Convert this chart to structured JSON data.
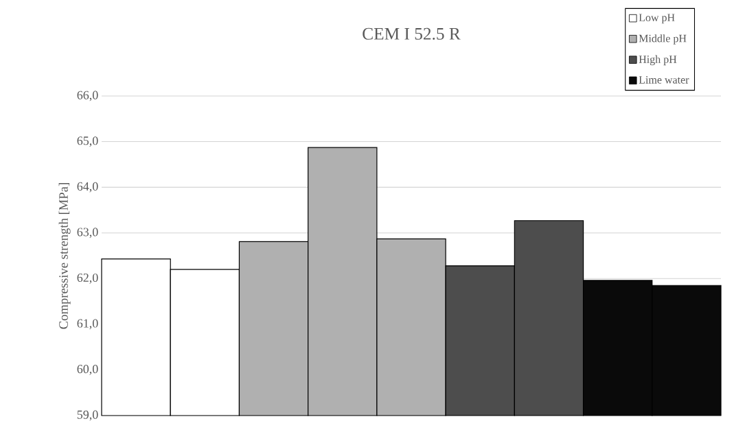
{
  "chart_data": {
    "type": "bar",
    "title": "CEM I 52.5 R",
    "ylabel": "Compressive strength [MPa]",
    "categories": [
      null,
      null,
      null,
      null,
      null,
      null,
      null,
      null,
      null
    ],
    "series": [
      {
        "name": "Low pH",
        "color": "#ffffff",
        "values": [
          62.43,
          62.2,
          null,
          null,
          null,
          null,
          null,
          null,
          null
        ]
      },
      {
        "name": "Middle pH",
        "color": "#b0b0b0",
        "values": [
          null,
          null,
          62.81,
          64.87,
          62.87,
          null,
          null,
          null,
          null
        ]
      },
      {
        "name": "High pH",
        "color": "#4d4d4d",
        "values": [
          null,
          null,
          null,
          null,
          null,
          62.28,
          63.27,
          null,
          null
        ]
      },
      {
        "name": "Lime water",
        "color": "#0a0a0a",
        "values": [
          null,
          null,
          null,
          null,
          null,
          null,
          null,
          61.96,
          61.85
        ]
      }
    ],
    "ylim": [
      59,
      66
    ],
    "yticks": [
      {
        "value": 59,
        "label": "59,0"
      },
      {
        "value": 60,
        "label": "60,0"
      },
      {
        "value": 61,
        "label": "61,0"
      },
      {
        "value": 62,
        "label": "62,0"
      },
      {
        "value": 63,
        "label": "63,0"
      },
      {
        "value": 64,
        "label": "64,0"
      },
      {
        "value": 65,
        "label": "65,0"
      },
      {
        "value": 66,
        "label": "66,0"
      }
    ],
    "grid": "y",
    "legend": "top right",
    "tick_labels": "y"
  }
}
